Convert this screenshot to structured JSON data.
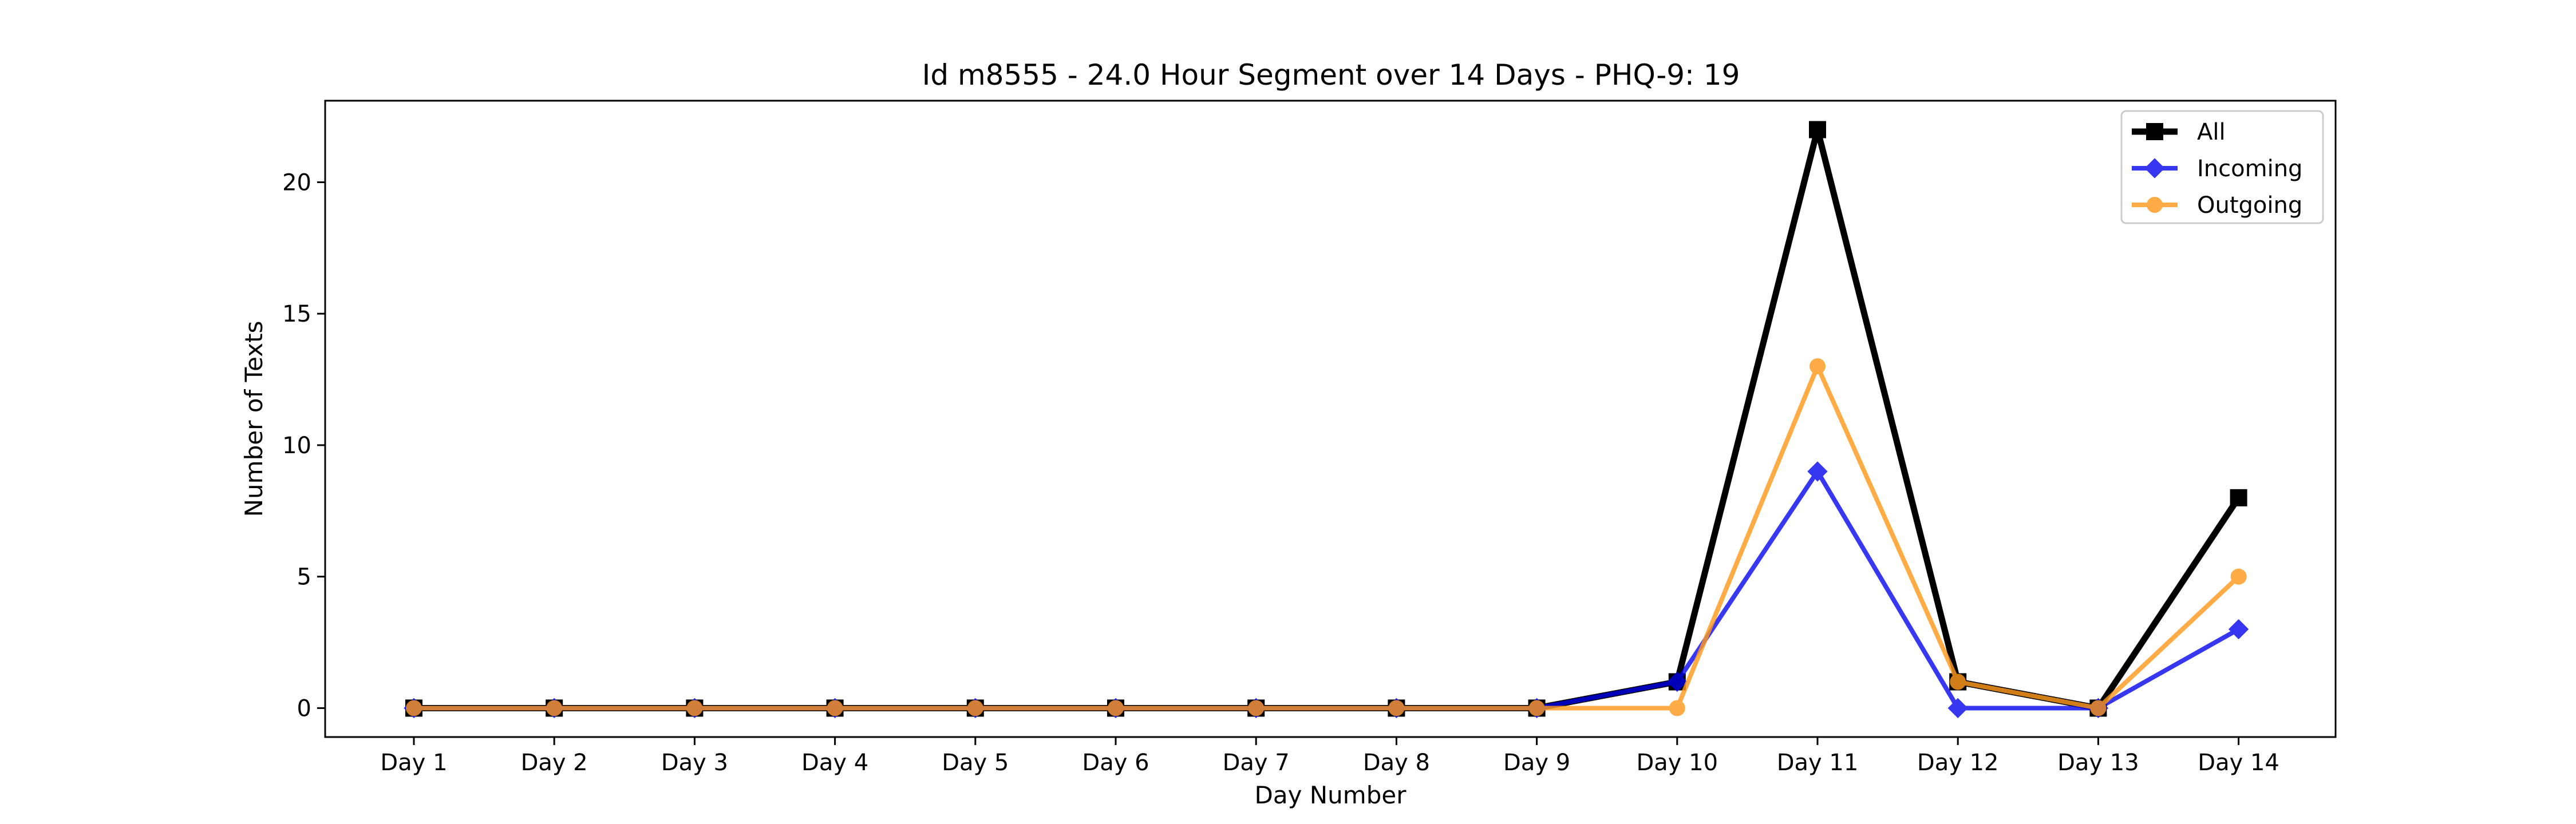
{
  "chart_data": {
    "type": "line",
    "title": "Id m8555 - 24.0 Hour Segment over 14 Days - PHQ-9: 19",
    "xlabel": "Day Number",
    "ylabel": "Number of Texts",
    "categories": [
      "Day 1",
      "Day 2",
      "Day 3",
      "Day 4",
      "Day 5",
      "Day 6",
      "Day 7",
      "Day 8",
      "Day 9",
      "Day 10",
      "Day 11",
      "Day 12",
      "Day 13",
      "Day 14"
    ],
    "yticks": [
      0,
      5,
      10,
      15,
      20
    ],
    "ylim": [
      -1.1,
      23.1
    ],
    "grid": false,
    "legend_position": "top-right",
    "series": [
      {
        "name": "All",
        "values": [
          0,
          0,
          0,
          0,
          0,
          0,
          0,
          0,
          0,
          1,
          22,
          1,
          0,
          8
        ],
        "color": "#000000",
        "marker": "square"
      },
      {
        "name": "Incoming",
        "values": [
          0,
          0,
          0,
          0,
          0,
          0,
          0,
          0,
          0,
          1,
          9,
          0,
          0,
          3
        ],
        "color": "#0000ee",
        "marker": "diamond"
      },
      {
        "name": "Outgoing",
        "values": [
          0,
          0,
          0,
          0,
          0,
          0,
          0,
          0,
          0,
          0,
          13,
          1,
          0,
          5
        ],
        "color": "#ff9a1f",
        "marker": "circle"
      }
    ]
  }
}
